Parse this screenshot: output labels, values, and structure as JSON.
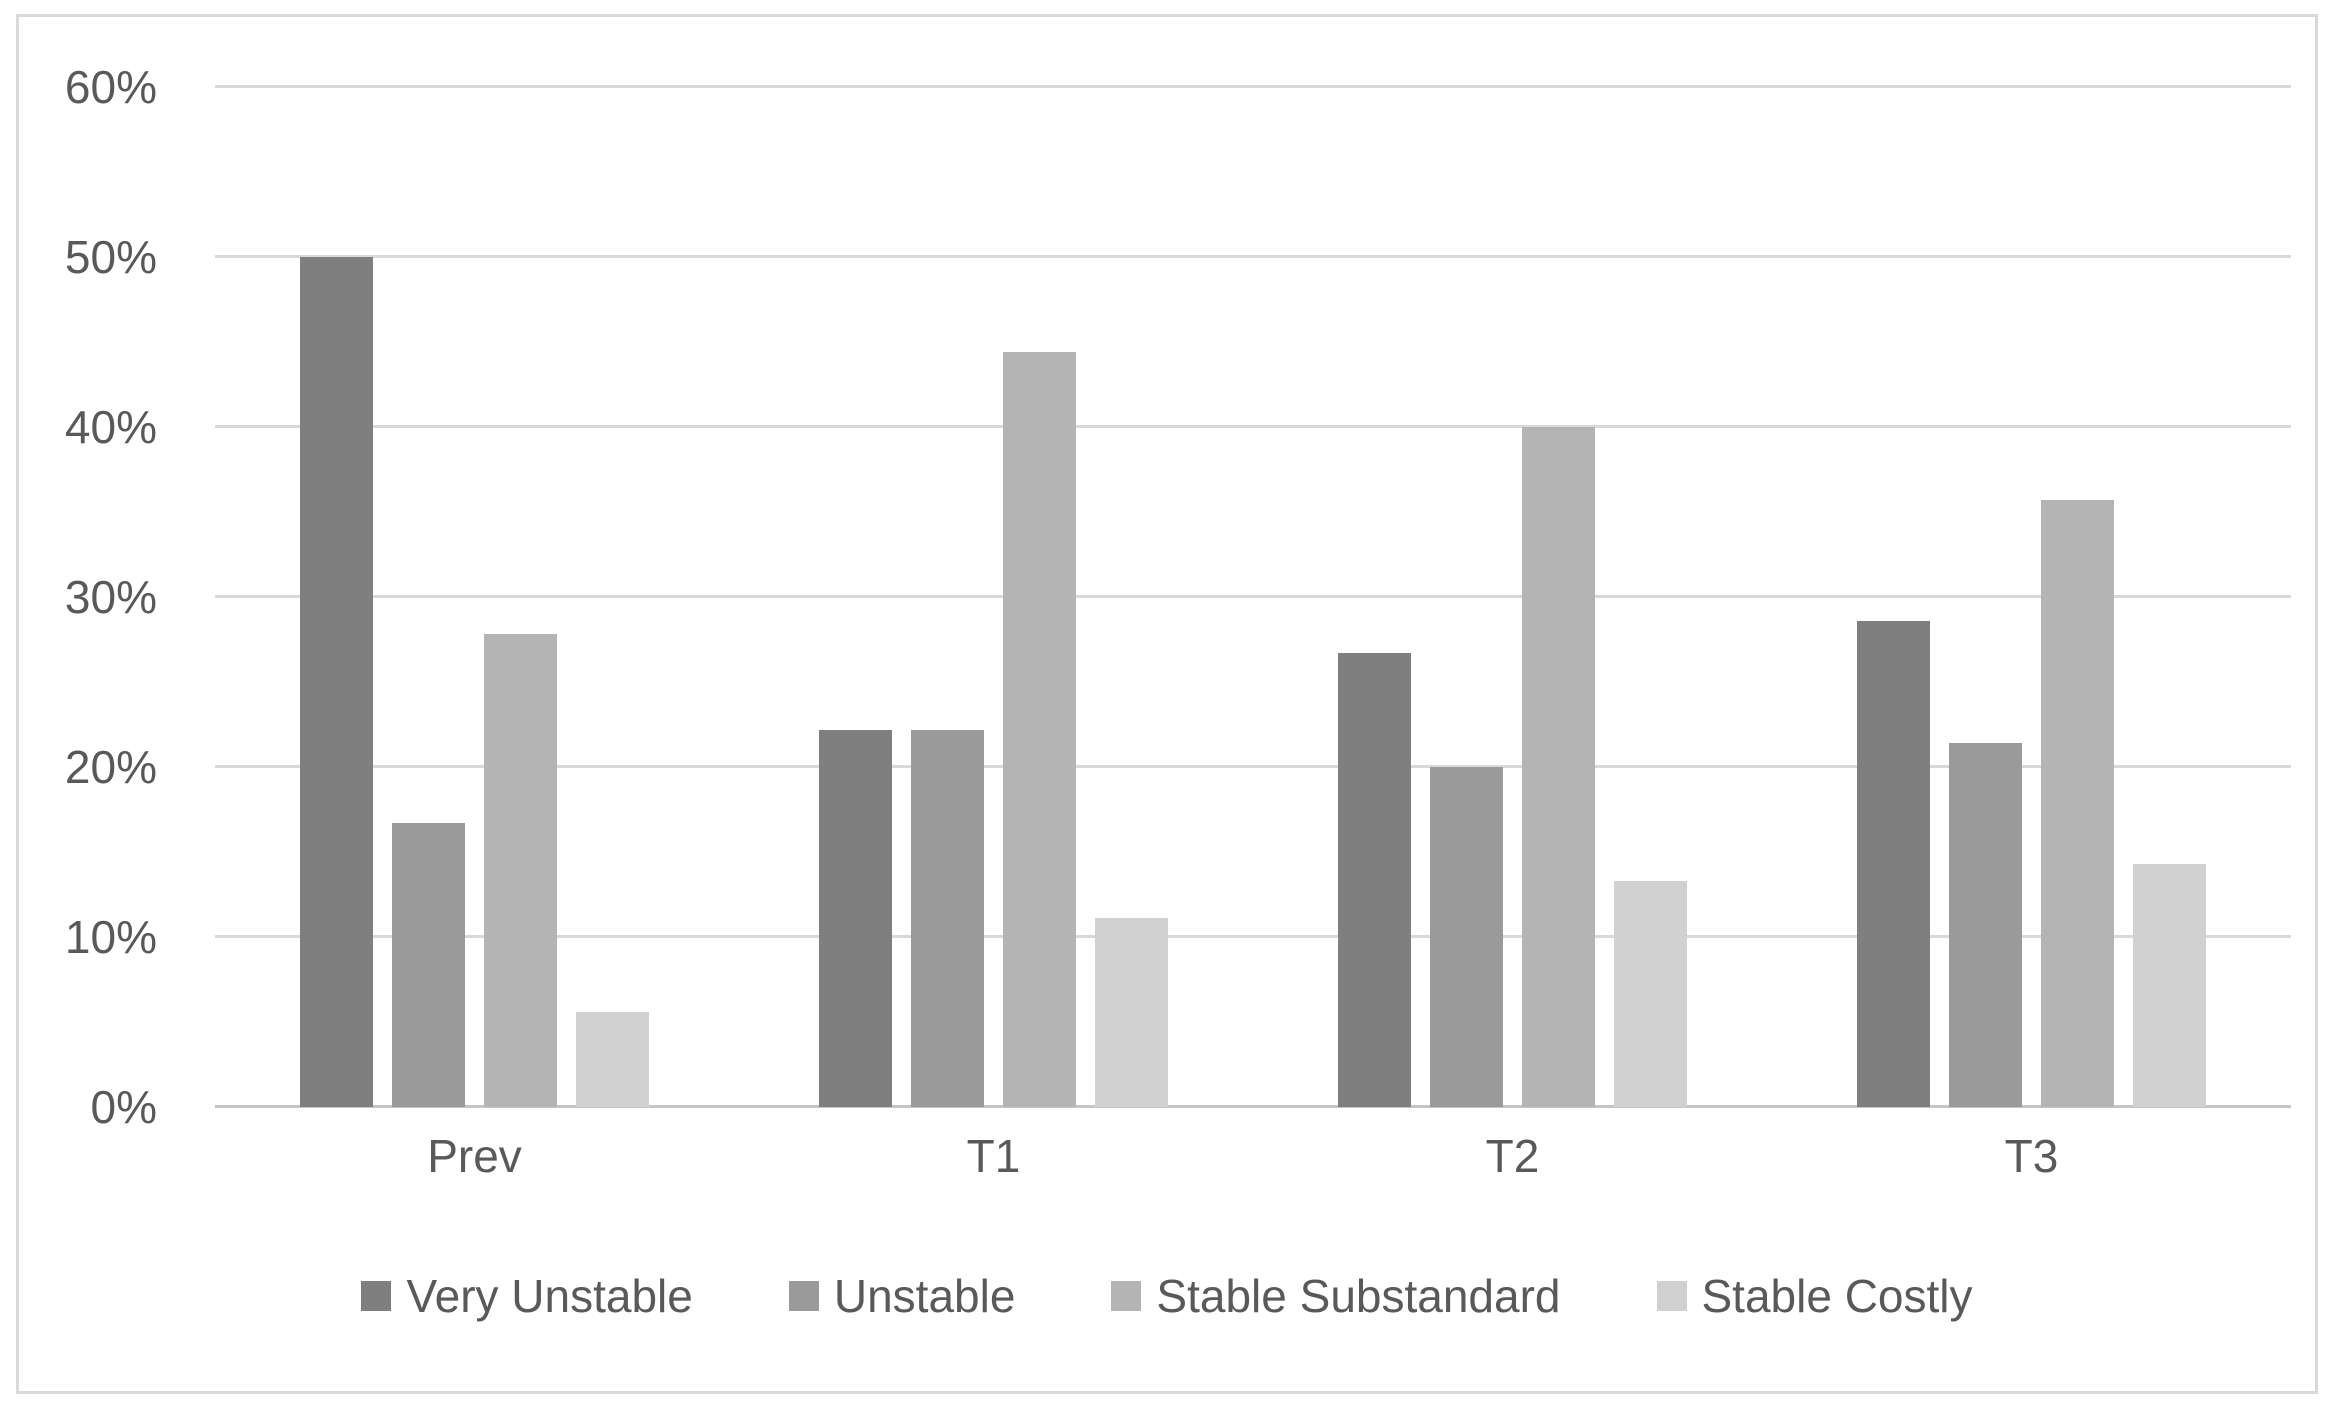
{
  "chart_data": {
    "type": "bar",
    "orientation": "vertical",
    "title": "",
    "xlabel": "",
    "ylabel": "",
    "categories": [
      "Prev",
      "T1",
      "T2",
      "T3"
    ],
    "series": [
      {
        "name": "Very Unstable",
        "color": "#7F7F7F",
        "values": [
          50.0,
          22.2,
          26.7,
          28.6
        ]
      },
      {
        "name": "Unstable",
        "color": "#9A9A9A",
        "values": [
          16.7,
          22.2,
          20.0,
          21.4
        ]
      },
      {
        "name": "Stable Substandard",
        "color": "#B4B4B4",
        "values": [
          27.8,
          44.4,
          40.0,
          35.7
        ]
      },
      {
        "name": "Stable Costly",
        "color": "#D1D1D1",
        "values": [
          5.6,
          11.1,
          13.3,
          14.3
        ]
      }
    ],
    "ylim": [
      0,
      60
    ],
    "yticks": [
      {
        "value": 0,
        "label": "0%"
      },
      {
        "value": 10,
        "label": "10%"
      },
      {
        "value": 20,
        "label": "20%"
      },
      {
        "value": 30,
        "label": "30%"
      },
      {
        "value": 40,
        "label": "40%"
      },
      {
        "value": 50,
        "label": "50%"
      },
      {
        "value": 60,
        "label": "60%"
      }
    ],
    "grid": "horizontal",
    "legend_position": "bottom",
    "colors": {
      "background": "#FFFFFF",
      "frame_border": "#D9D9D9",
      "gridline": "#D9D9D9",
      "axis_line": "#C5C5C5",
      "axis_text": "#595959"
    }
  }
}
